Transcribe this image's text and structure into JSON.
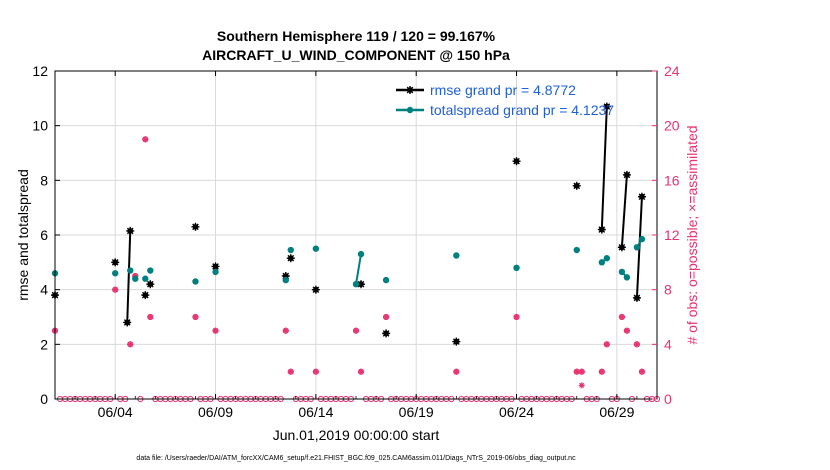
{
  "chart_data": {
    "type": "scatter",
    "title": "Southern Hemisphere 119 / 120 = 99.167%",
    "subtitle": "AIRCRAFT_U_WIND_COMPONENT @ 150 hPa",
    "xlabel": "Jun.01,2019 00:00:00 start",
    "ylabel_left": "rmse and totalspread",
    "ylabel_right": "# of obs: o=possible; ×=assimilated",
    "footer": "data file: /Users/raeder/DAI/ATM_forcXX/CAM6_setup/f.e21.FHIST_BGC.f09_025.CAM6assim.011/Diags_NTrS_2019-06/obs_diag_output.nc",
    "x_units": "day of June 2019 (1.0 = Jun 01 00:00)",
    "xlim": [
      1.0,
      31.0
    ],
    "xticks": [
      {
        "x": 4,
        "label": "06/04"
      },
      {
        "x": 9,
        "label": "06/09"
      },
      {
        "x": 14,
        "label": "06/14"
      },
      {
        "x": 19,
        "label": "06/19"
      },
      {
        "x": 24,
        "label": "06/24"
      },
      {
        "x": 29,
        "label": "06/29"
      }
    ],
    "ylim_left": [
      0,
      12
    ],
    "yticks_left": [
      "0",
      "2",
      "4",
      "6",
      "8",
      "10",
      "12"
    ],
    "ylim_right": [
      0,
      24
    ],
    "yticks_right": [
      "0",
      "4",
      "8",
      "12",
      "16",
      "20",
      "24"
    ],
    "grid": true,
    "legend_position": "top-right",
    "colors": {
      "rmse": "#000000",
      "spread": "#007f7f",
      "obs": "#e8336e",
      "legend_text": "#1f5fd6"
    },
    "series": [
      {
        "name": "rmse grand pr = 4.8772",
        "color": "#000000",
        "points": [
          [
            1.0,
            3.8
          ],
          [
            4.0,
            5.0
          ],
          [
            4.6,
            2.8
          ],
          [
            4.75,
            6.15
          ],
          [
            5.5,
            3.8
          ],
          [
            5.75,
            4.2
          ],
          [
            8.0,
            6.3
          ],
          [
            9.0,
            4.85
          ],
          [
            12.5,
            4.5
          ],
          [
            12.75,
            5.15
          ],
          [
            14.0,
            4.0
          ],
          [
            16.25,
            4.2
          ],
          [
            17.5,
            2.4
          ],
          [
            21.0,
            2.1
          ],
          [
            24.0,
            8.7
          ],
          [
            27.0,
            7.8
          ],
          [
            28.25,
            6.2
          ],
          [
            28.5,
            10.7
          ],
          [
            29.25,
            5.55
          ],
          [
            29.5,
            8.2
          ],
          [
            30.0,
            3.7
          ],
          [
            30.25,
            7.4
          ]
        ],
        "segments": [
          [
            4.6,
            4.75
          ],
          [
            28.25,
            28.5
          ],
          [
            29.25,
            29.5
          ],
          [
            30.0,
            30.25
          ]
        ]
      },
      {
        "name": "totalspread grand pr = 4.1237",
        "color": "#007f7f",
        "points": [
          [
            1.0,
            4.6
          ],
          [
            4.0,
            4.6
          ],
          [
            4.75,
            4.7
          ],
          [
            5.0,
            4.4
          ],
          [
            5.5,
            4.4
          ],
          [
            5.75,
            4.7
          ],
          [
            8.0,
            4.3
          ],
          [
            9.0,
            4.65
          ],
          [
            12.5,
            4.35
          ],
          [
            12.75,
            5.45
          ],
          [
            14.0,
            5.5
          ],
          [
            16.0,
            4.2
          ],
          [
            16.25,
            5.3
          ],
          [
            17.5,
            4.35
          ],
          [
            21.0,
            5.25
          ],
          [
            24.0,
            4.8
          ],
          [
            27.0,
            5.45
          ],
          [
            28.25,
            5.0
          ],
          [
            28.5,
            5.15
          ],
          [
            29.25,
            4.65
          ],
          [
            29.5,
            4.45
          ],
          [
            30.0,
            5.55
          ],
          [
            30.25,
            5.85
          ]
        ],
        "segments": [
          [
            16.0,
            16.25
          ],
          [
            28.25,
            28.5
          ],
          [
            29.25,
            29.5
          ],
          [
            30.0,
            30.25
          ]
        ]
      }
    ],
    "obs_possible": [
      [
        1.0,
        5
      ],
      [
        4.0,
        8
      ],
      [
        4.75,
        4
      ],
      [
        5.0,
        9
      ],
      [
        5.5,
        19
      ],
      [
        5.75,
        6
      ],
      [
        8.0,
        6
      ],
      [
        9.0,
        5
      ],
      [
        12.5,
        5
      ],
      [
        12.75,
        2
      ],
      [
        14.0,
        2
      ],
      [
        16.0,
        5
      ],
      [
        16.25,
        2
      ],
      [
        17.5,
        6
      ],
      [
        21.0,
        2
      ],
      [
        24.0,
        6
      ],
      [
        27.0,
        2
      ],
      [
        27.25,
        2
      ],
      [
        28.25,
        2
      ],
      [
        28.5,
        4
      ],
      [
        29.25,
        6
      ],
      [
        29.5,
        5
      ],
      [
        30.0,
        4
      ],
      [
        30.25,
        2
      ]
    ],
    "obs_assimilated": [
      [
        27.25,
        1
      ]
    ]
  }
}
